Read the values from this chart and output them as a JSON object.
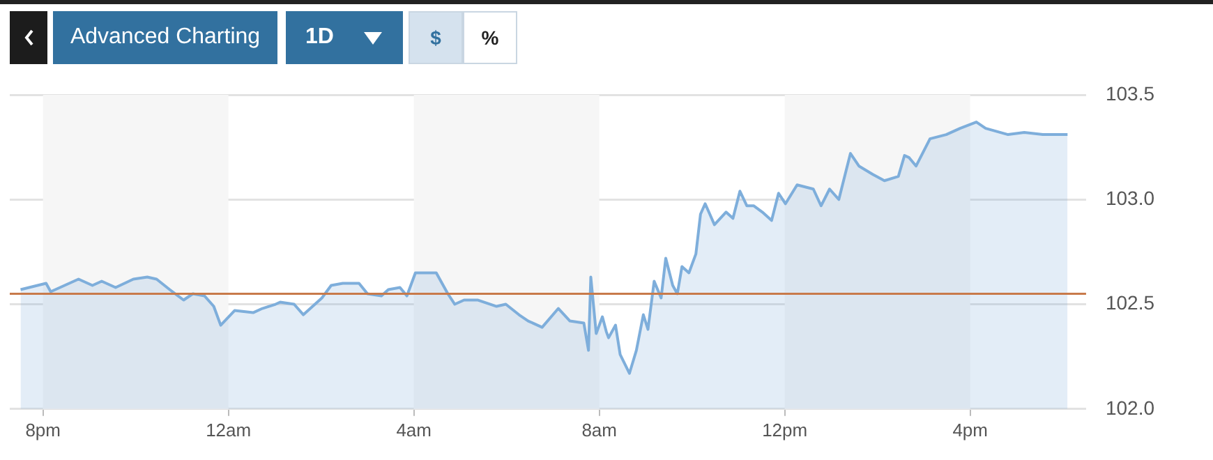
{
  "chart_data": {
    "type": "area",
    "annotations": [
      "Advanced Charting",
      "1D",
      "$",
      "%"
    ],
    "x": [
      "--01-01T19:31",
      "--01-01T20:04",
      "--01-01T20:10",
      "--01-01T20:46",
      "--01-01T21:04",
      "--01-01T21:16",
      "--01-01T21:34",
      "--01-01T21:57",
      "--01-01T22:15",
      "--01-01T22:27",
      "--01-01T22:44",
      "--01-01T23:02",
      "--01-01T23:14",
      "--01-01T23:29",
      "--01-01T23:41",
      "--01-01T23:50",
      "--01-02T00:08",
      "--01-02T00:32",
      "--01-02T00:44",
      "--01-02T01:01",
      "--01-02T01:07",
      "--01-02T01:25",
      "--01-02T01:37",
      "--01-02T02:01",
      "--01-02T02:13",
      "--01-02T02:28",
      "--01-02T02:49",
      "--01-02T03:00",
      "--01-02T03:18",
      "--01-02T03:27",
      "--01-02T03:42",
      "--01-02T03:51",
      "--01-02T04:02",
      "--01-02T04:17",
      "--01-02T04:29",
      "--01-02T04:44",
      "--01-02T04:53",
      "--01-02T05:05",
      "--01-02T05:23",
      "--01-02T05:47",
      "--01-02T05:59",
      "--01-02T06:16",
      "--01-02T06:28",
      "--01-02T06:46",
      "--01-02T07:07",
      "--01-02T07:22",
      "--01-02T07:40",
      "--01-02T07:46",
      "--01-02T07:49",
      "--01-02T07:56",
      "--01-02T08:04",
      "--01-02T08:09",
      "--01-02T08:12",
      "--01-02T08:21",
      "--01-02T08:27",
      "--01-02T08:39",
      "--01-02T08:48",
      "--01-02T08:57",
      "--01-02T09:03",
      "--01-02T09:11",
      "--01-02T09:20",
      "--01-02T09:26",
      "--01-02T09:35",
      "--01-02T09:41",
      "--01-02T09:47",
      "--01-02T09:56",
      "--01-02T10:05",
      "--01-02T10:11",
      "--01-02T10:17",
      "--01-02T10:29",
      "--01-02T10:44",
      "--01-02T10:53",
      "--01-02T11:02",
      "--01-02T11:11",
      "--01-02T11:20",
      "--01-02T11:31",
      "--01-02T11:43",
      "--01-02T11:52",
      "--01-02T12:01",
      "--01-02T12:16",
      "--01-02T12:37",
      "--01-02T12:47",
      "--01-02T12:58",
      "--01-02T13:10",
      "--01-02T13:25",
      "--01-02T13:36",
      "--01-02T13:54",
      "--01-02T14:09",
      "--01-02T14:27",
      "--01-02T14:35",
      "--01-02T14:41",
      "--01-02T14:50",
      "--01-02T15:08",
      "--01-02T15:29",
      "--01-02T15:47",
      "--01-02T16:08",
      "--01-02T16:20",
      "--01-02T16:49",
      "--01-02T17:10",
      "--01-02T17:34",
      "--01-02T18:06"
    ],
    "series": [
      {
        "color": "#7eaedb",
        "values": [
          102.57,
          102.6,
          102.56,
          102.62,
          102.59,
          102.61,
          102.58,
          102.62,
          102.63,
          102.62,
          102.57,
          102.52,
          102.55,
          102.54,
          102.49,
          102.4,
          102.47,
          102.46,
          102.48,
          102.5,
          102.51,
          102.5,
          102.45,
          102.53,
          102.59,
          102.6,
          102.6,
          102.55,
          102.54,
          102.57,
          102.58,
          102.54,
          102.65,
          102.65,
          102.65,
          102.55,
          102.5,
          102.52,
          102.52,
          102.49,
          102.5,
          102.45,
          102.42,
          102.39,
          102.48,
          102.42,
          102.41,
          102.28,
          102.63,
          102.36,
          102.44,
          102.37,
          102.34,
          102.4,
          102.26,
          102.17,
          102.28,
          102.45,
          102.38,
          102.61,
          102.53,
          102.72,
          102.59,
          102.55,
          102.68,
          102.65,
          102.74,
          102.93,
          102.98,
          102.88,
          102.94,
          102.91,
          103.04,
          102.97,
          102.97,
          102.94,
          102.9,
          103.03,
          102.98,
          103.07,
          103.05,
          102.97,
          103.05,
          103.0,
          103.22,
          103.16,
          103.12,
          103.09,
          103.11,
          103.21,
          103.2,
          103.16,
          103.29,
          103.31,
          103.34,
          103.37,
          103.34,
          103.31,
          103.32,
          103.31,
          103.31
        ]
      }
    ],
    "xlim": [
      "--01-01T19:17",
      "--01-02T18:30"
    ],
    "xticks": [
      {
        "value": "--01-01T20:00",
        "label": "8pm"
      },
      {
        "value": "--01-02T00:00",
        "label": "12am"
      },
      {
        "value": "--01-02T04:00",
        "label": "4am"
      },
      {
        "value": "--01-02T08:00",
        "label": "8am"
      },
      {
        "value": "--01-02T12:00",
        "label": "12pm"
      },
      {
        "value": "--01-02T16:00",
        "label": "4pm"
      }
    ],
    "ylim": [
      102.0,
      103.5
    ],
    "yticks": [
      {
        "value": 102.0,
        "label": "102.0"
      },
      {
        "value": 102.5,
        "label": "102.5"
      },
      {
        "value": 103.0,
        "label": "103.0"
      },
      {
        "value": 103.5,
        "label": "103.5"
      }
    ],
    "ref_lines": [
      {
        "axis": "y",
        "value": 102.55,
        "color": "#c87a4a"
      }
    ],
    "bands": [
      {
        "axis": "x",
        "from": "--01-01T20:00",
        "to": "--01-02T00:00",
        "color": "#f6f6f6"
      },
      {
        "axis": "x",
        "from": "--01-02T04:00",
        "to": "--01-02T08:00",
        "color": "#f6f6f6"
      },
      {
        "axis": "x",
        "from": "--01-02T12:00",
        "to": "--01-02T16:00",
        "color": "#f6f6f6"
      }
    ],
    "grid": "y",
    "legend": false,
    "marker": "none",
    "line_style": "solid"
  }
}
